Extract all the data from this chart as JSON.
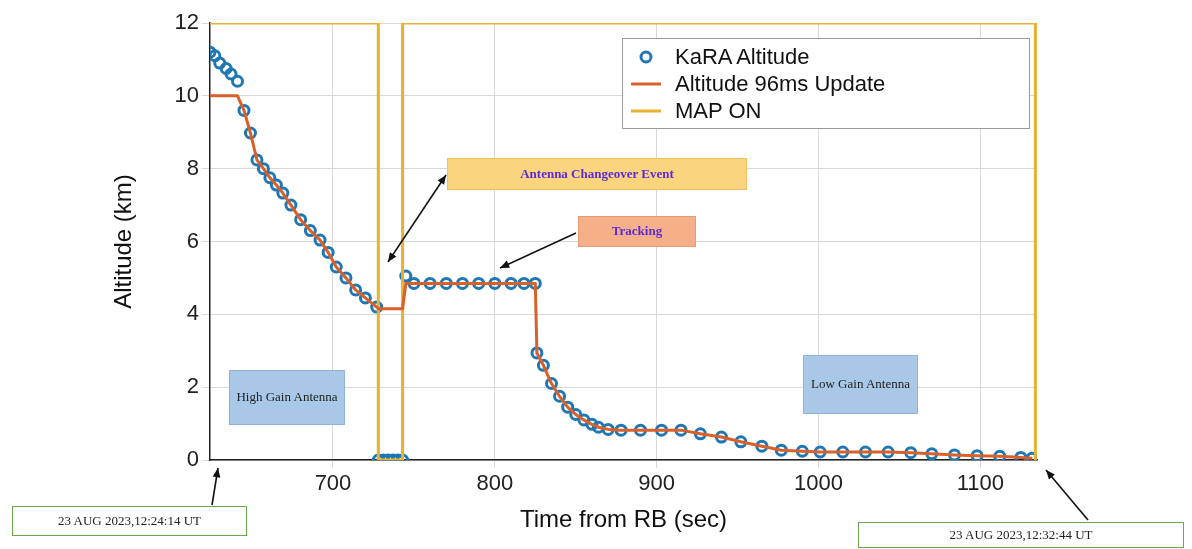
{
  "chart_data": {
    "type": "scatter",
    "xlabel": "Time from RB (sec)",
    "ylabel": "Altitude (km)",
    "xlim": [
      624,
      1135
    ],
    "ylim": [
      0,
      12
    ],
    "xticks": [
      700,
      800,
      900,
      1000,
      1100
    ],
    "yticks": [
      0,
      2,
      4,
      6,
      8,
      10,
      12
    ],
    "grid": true,
    "legend": "top right",
    "series": [
      {
        "name": "KaRA Altitude",
        "marker": "circle",
        "color": "#1f77b4",
        "x": [
          624,
          627,
          630,
          634,
          637,
          641,
          645,
          649,
          653,
          657,
          661,
          665,
          669,
          674,
          680,
          686,
          692,
          697,
          702,
          708,
          714,
          720,
          727,
          728,
          731,
          734,
          737,
          740,
          743,
          745,
          750,
          760,
          770,
          780,
          790,
          800,
          810,
          818,
          825,
          826,
          830,
          835,
          840,
          845,
          850,
          855,
          860,
          864,
          870,
          878,
          890,
          903,
          915,
          927,
          940,
          952,
          965,
          977,
          990,
          1001,
          1015,
          1029,
          1043,
          1057,
          1070,
          1084,
          1098,
          1112,
          1125,
          1132
        ],
        "values": [
          11.2,
          11.1,
          10.9,
          10.75,
          10.6,
          10.4,
          9.6,
          8.98,
          8.24,
          8.0,
          7.75,
          7.55,
          7.33,
          7.0,
          6.6,
          6.3,
          6.04,
          5.7,
          5.3,
          5.0,
          4.67,
          4.45,
          4.2,
          0,
          0,
          0,
          0,
          0,
          0,
          5.05,
          4.85,
          4.85,
          4.85,
          4.85,
          4.85,
          4.85,
          4.85,
          4.85,
          4.85,
          2.94,
          2.6,
          2.1,
          1.75,
          1.45,
          1.25,
          1.1,
          0.98,
          0.9,
          0.84,
          0.82,
          0.82,
          0.82,
          0.82,
          0.72,
          0.63,
          0.5,
          0.38,
          0.27,
          0.24,
          0.22,
          0.22,
          0.22,
          0.22,
          0.2,
          0.17,
          0.14,
          0.12,
          0.1,
          0.07,
          0.05
        ]
      },
      {
        "name": "Altitude 96ms Update",
        "type": "line",
        "color": "#d9602a",
        "x": [
          624,
          641,
          645,
          649,
          653,
          657,
          661,
          665,
          669,
          674,
          680,
          686,
          692,
          697,
          702,
          708,
          714,
          720,
          727,
          728,
          743,
          745,
          750,
          825,
          826,
          830,
          835,
          840,
          845,
          850,
          855,
          860,
          864,
          870,
          878,
          890,
          903,
          915,
          927,
          940,
          952,
          965,
          977,
          990,
          1001,
          1015,
          1029,
          1043,
          1057,
          1070,
          1084,
          1098,
          1112,
          1125,
          1132
        ],
        "values": [
          10,
          10,
          9.6,
          8.98,
          8.24,
          8.0,
          7.75,
          7.55,
          7.33,
          7.0,
          6.6,
          6.3,
          6.04,
          5.7,
          5.3,
          5.0,
          4.67,
          4.45,
          4.2,
          4.15,
          4.15,
          4.85,
          4.85,
          4.85,
          2.94,
          2.6,
          2.1,
          1.75,
          1.45,
          1.25,
          1.1,
          0.98,
          0.9,
          0.84,
          0.82,
          0.82,
          0.82,
          0.82,
          0.72,
          0.63,
          0.5,
          0.38,
          0.27,
          0.24,
          0.22,
          0.22,
          0.22,
          0.22,
          0.2,
          0.17,
          0.14,
          0.12,
          0.1,
          0.07,
          0.05
        ]
      },
      {
        "name": "MAP ON",
        "type": "line",
        "color": "#e8b12e",
        "x": [
          624,
          728,
          728,
          743,
          743,
          1134,
          1134
        ],
        "values": [
          12,
          12,
          0,
          0,
          12,
          12,
          0
        ]
      }
    ],
    "annotations": [
      "Antenna Changeover Event",
      "Tracking",
      "High Gain Antenna",
      "Low Gain Antenna",
      "23 AUG 2023,12:24:14 UT",
      "23 AUG 2023,12:32:44 UT"
    ]
  }
}
